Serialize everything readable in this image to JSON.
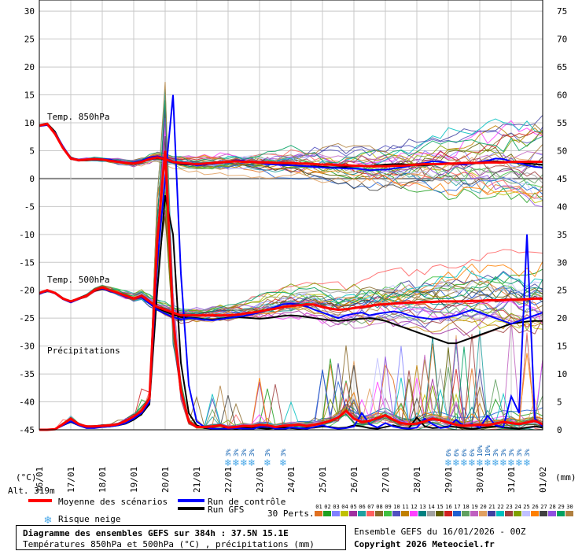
{
  "chart_data": {
    "type": "line",
    "title": "Diagramme des ensembles GEFS sur 384h : 37.5N 15.1E",
    "subtitle": "Températures 850hPa et 500hPa (°C) , précipitations (mm)",
    "ylabel": "(°C)",
    "ylabel_right": "(mm)",
    "ylim": [
      -45,
      32
    ],
    "ylim_right": [
      0,
      77
    ],
    "yticks_left": [
      "30",
      "25",
      "20",
      "15",
      "10",
      "5",
      "0",
      "-5",
      "-10",
      "-15",
      "-20",
      "-25",
      "-30",
      "-35",
      "-40",
      "-45"
    ],
    "yticks_right": [
      "75",
      "70",
      "65",
      "60",
      "55",
      "50",
      "45",
      "40",
      "35",
      "30",
      "25",
      "20",
      "15",
      "10",
      "5",
      "0"
    ],
    "x_labels": [
      "16/01",
      "17/01",
      "18/01",
      "19/01",
      "20/01",
      "21/01",
      "22/01",
      "23/01",
      "24/01",
      "25/01",
      "26/01",
      "27/01",
      "28/01",
      "29/01",
      "30/01",
      "31/01",
      "01/02"
    ],
    "panels": [
      "Temp. 850hPa",
      "Temp. 500hPa",
      "Précipitations"
    ],
    "x": [
      0,
      6,
      12,
      18,
      24,
      30,
      36,
      42,
      48,
      54,
      60,
      66,
      72,
      78,
      84,
      90,
      96,
      102,
      108,
      114,
      120,
      126,
      132,
      138,
      144,
      150,
      156,
      162,
      168,
      174,
      180,
      186,
      192,
      198,
      204,
      210,
      216,
      222,
      228,
      234,
      240,
      246,
      252,
      258,
      264,
      270,
      276,
      282,
      288,
      294,
      300,
      306,
      312,
      318,
      324,
      330,
      336,
      342,
      348,
      354,
      360,
      366,
      372,
      378,
      384
    ],
    "series": [
      {
        "name": "Moyenne des scénarios",
        "panel": "850",
        "values": [
          9.5,
          9.8,
          8.0,
          5.5,
          3.6,
          3.3,
          3.4,
          3.5,
          3.4,
          3.2,
          3.0,
          2.8,
          2.7,
          3.0,
          3.5,
          3.8,
          3.5,
          3.0,
          2.8,
          2.7,
          2.6,
          2.7,
          2.8,
          2.9,
          3.0,
          3.1,
          3.0,
          3.0,
          2.9,
          2.9,
          2.8,
          2.8,
          2.8,
          2.7,
          2.7,
          2.6,
          2.5,
          2.5,
          2.4,
          2.4,
          2.3,
          2.3,
          2.2,
          2.2,
          2.2,
          2.3,
          2.3,
          2.4,
          2.5,
          2.6,
          2.6,
          2.6,
          2.7,
          2.7,
          2.8,
          2.8,
          2.8,
          2.9,
          2.9,
          2.9,
          3.0,
          3.0,
          3.0,
          3.0,
          3.0
        ]
      },
      {
        "name": "Moyenne des scénarios",
        "panel": "500",
        "values": [
          -20.5,
          -20.0,
          -20.5,
          -21.5,
          -22.0,
          -21.5,
          -21.0,
          -20.0,
          -19.5,
          -20.0,
          -20.5,
          -21.0,
          -21.5,
          -21.0,
          -22.0,
          -23.0,
          -23.5,
          -24.0,
          -24.5,
          -24.5,
          -24.5,
          -24.5,
          -24.5,
          -24.5,
          -24.5,
          -24.4,
          -24.2,
          -24.0,
          -23.8,
          -23.5,
          -23.3,
          -23.0,
          -22.8,
          -22.7,
          -22.5,
          -22.6,
          -23.0,
          -23.3,
          -23.5,
          -23.4,
          -23.2,
          -23.0,
          -22.8,
          -22.6,
          -22.5,
          -22.4,
          -22.3,
          -22.2,
          -22.2,
          -22.1,
          -22.1,
          -22.0,
          -22.0,
          -22.0,
          -22.0,
          -21.9,
          -21.9,
          -21.8,
          -21.8,
          -21.8,
          -21.7,
          -21.7,
          -21.6,
          -21.5,
          -21.5
        ]
      },
      {
        "name": "Moyenne des scénarios",
        "panel": "precip",
        "values": [
          0,
          0,
          0.1,
          1.0,
          2.0,
          1.0,
          0.6,
          0.6,
          0.7,
          0.8,
          1.0,
          1.6,
          2.4,
          3.4,
          5.6,
          34,
          50,
          20,
          7,
          1.5,
          0.5,
          0.5,
          0.6,
          0.8,
          0.4,
          0.5,
          0.7,
          0.6,
          0.9,
          0.8,
          0.5,
          0.7,
          0.8,
          0.9,
          0.7,
          0.9,
          1.2,
          1.6,
          2.2,
          3.4,
          2.0,
          1.4,
          1.6,
          2.1,
          2.6,
          1.8,
          1.2,
          1.0,
          1.1,
          1.5,
          2.0,
          1.7,
          1.3,
          0.9,
          0.7,
          0.8,
          0.9,
          0.8,
          1.1,
          1.4,
          1.2,
          1.0,
          1.3,
          1.6,
          1.0
        ]
      },
      {
        "name": "Run de contrôle",
        "panel": "850",
        "values": [
          9.4,
          9.6,
          8.2,
          5.8,
          3.7,
          3.4,
          3.4,
          3.6,
          3.5,
          3.4,
          3.1,
          2.9,
          2.9,
          3.2,
          3.8,
          4.0,
          3.7,
          3.1,
          2.7,
          2.6,
          2.4,
          2.5,
          2.7,
          2.8,
          3.0,
          3.3,
          3.2,
          3.0,
          2.8,
          2.6,
          2.5,
          2.4,
          2.4,
          2.3,
          2.2,
          2.1,
          2.0,
          1.9,
          1.9,
          1.8,
          1.8,
          1.7,
          1.5,
          1.6,
          1.6,
          1.8,
          2.0,
          2.2,
          2.6,
          2.8,
          3.1,
          3.0,
          2.8,
          2.6,
          2.5,
          2.7,
          3.0,
          3.2,
          3.6,
          3.5,
          3.1,
          2.8,
          2.4,
          2.1,
          2.0
        ]
      },
      {
        "name": "Run de contrôle",
        "panel": "500",
        "values": [
          -20.7,
          -20.1,
          -20.6,
          -21.6,
          -22.2,
          -21.6,
          -21.0,
          -20.0,
          -19.7,
          -20.2,
          -20.6,
          -21.2,
          -21.5,
          -21.3,
          -22.4,
          -23.5,
          -24.2,
          -24.8,
          -25.2,
          -25.0,
          -25.1,
          -25.3,
          -25.4,
          -25.2,
          -25.0,
          -24.8,
          -24.6,
          -24.3,
          -24.0,
          -23.5,
          -23.0,
          -22.5,
          -22.4,
          -22.6,
          -22.9,
          -23.5,
          -24.0,
          -24.5,
          -25.0,
          -24.5,
          -24.2,
          -24.0,
          -24.5,
          -24.2,
          -24.0,
          -23.8,
          -24.0,
          -24.5,
          -24.8,
          -25.0,
          -25.2,
          -25.0,
          -24.8,
          -24.5,
          -24.0,
          -23.5,
          -24.0,
          -24.5,
          -25.0,
          -25.5,
          -26.0,
          -25.5,
          -25.0,
          -24.5,
          -24.0
        ]
      },
      {
        "name": "Run de contrôle",
        "panel": "precip",
        "values": [
          0,
          0,
          0.1,
          0.8,
          1.5,
          0.8,
          0.3,
          0.3,
          0.5,
          0.6,
          0.8,
          1.2,
          2.0,
          3.0,
          5.0,
          30,
          45,
          60,
          28,
          8,
          1.5,
          0.5,
          0.2,
          0.1,
          0.2,
          0.3,
          0.2,
          0.1,
          0.5,
          0.6,
          0.2,
          0.1,
          0.4,
          0.3,
          0.2,
          0.5,
          0.8,
          0.4,
          0.2,
          0.3,
          0.6,
          3.0,
          1.0,
          0.4,
          1.2,
          0.6,
          0.3,
          0.2,
          0.4,
          2.0,
          1.0,
          0.3,
          0.5,
          1.8,
          0.6,
          1.0,
          0.4,
          2.5,
          0.8,
          0.5,
          6.0,
          3.0,
          35,
          2.0,
          0.6
        ]
      },
      {
        "name": "Run GFS",
        "panel": "850",
        "values": [
          9.6,
          9.9,
          8.4,
          5.6,
          3.8,
          3.3,
          3.3,
          3.4,
          3.3,
          3.3,
          3.0,
          2.8,
          2.8,
          3.1,
          3.4,
          3.7,
          3.4,
          2.9,
          2.6,
          2.5,
          2.5,
          2.6,
          2.7,
          2.8,
          3.0,
          3.2,
          3.1,
          2.9,
          2.8,
          2.7,
          2.6,
          2.5,
          2.4,
          2.3,
          2.2,
          2.2,
          2.1,
          2.0,
          2.0,
          2.1,
          2.2,
          2.3,
          2.3,
          2.4,
          2.5,
          2.6,
          2.6,
          2.5,
          2.4,
          2.4,
          2.5,
          2.6,
          2.7,
          2.6,
          2.6,
          2.7,
          2.8,
          3.0,
          3.1,
          3.0,
          2.9,
          2.8,
          2.7,
          2.6,
          2.5
        ]
      },
      {
        "name": "Run GFS",
        "panel": "500",
        "values": [
          -20.6,
          -20.2,
          -20.4,
          -21.4,
          -22.1,
          -21.4,
          -20.9,
          -20.1,
          -19.8,
          -20.1,
          -20.5,
          -21.1,
          -21.4,
          -21.2,
          -22.2,
          -23.2,
          -23.8,
          -24.4,
          -24.8,
          -24.9,
          -25.0,
          -25.2,
          -25.3,
          -25.1,
          -24.9,
          -24.8,
          -24.9,
          -25.0,
          -25.1,
          -25.0,
          -24.8,
          -24.6,
          -24.5,
          -24.6,
          -24.8,
          -25.0,
          -25.2,
          -25.4,
          -25.5,
          -25.4,
          -25.2,
          -25.1,
          -25.0,
          -25.2,
          -25.5,
          -26.0,
          -26.5,
          -27.0,
          -27.5,
          -28.0,
          -28.5,
          -29.0,
          -29.5,
          -29.5,
          -29.0,
          -28.5,
          -28.0,
          -27.5,
          -27.0,
          -26.5,
          -26.0,
          -25.8,
          -25.6,
          -25.5,
          -25.5
        ]
      },
      {
        "name": "Run GFS",
        "panel": "precip",
        "values": [
          0,
          0,
          0.1,
          0.8,
          1.4,
          0.8,
          0.4,
          0.4,
          0.5,
          0.6,
          0.8,
          1.1,
          1.8,
          2.8,
          4.6,
          25,
          42,
          35,
          12,
          3,
          0.8,
          0.3,
          0.2,
          0.2,
          0.3,
          0.2,
          0.3,
          0.4,
          0.3,
          0.2,
          0.3,
          0.4,
          0.3,
          0.2,
          0.3,
          0.4,
          0.6,
          0.5,
          0.3,
          0.4,
          0.8,
          0.6,
          0.3,
          0.2,
          0.5,
          0.8,
          0.4,
          0.3,
          2.2,
          0.6,
          0.3,
          0.4,
          0.6,
          0.5,
          0.3,
          0.2,
          0.3,
          0.5,
          0.6,
          0.4,
          0.3,
          0.2,
          0.4,
          0.6,
          0.4
        ]
      }
    ],
    "perturbations_count": 30,
    "perturbation_labels": [
      "01",
      "02",
      "03",
      "04",
      "05",
      "06",
      "07",
      "08",
      "09",
      "10",
      "11",
      "12",
      "13",
      "14",
      "15",
      "16",
      "17",
      "18",
      "19",
      "20",
      "21",
      "22",
      "23",
      "24",
      "25",
      "26",
      "27",
      "28",
      "29",
      "30"
    ],
    "perturbation_colors": [
      "#e07020",
      "#20a020",
      "#8080ff",
      "#c0c000",
      "#a030a0",
      "#20a0a0",
      "#ff6060",
      "#8a6a2a",
      "#40c040",
      "#5050c0",
      "#c08000",
      "#ff40ff",
      "#008080",
      "#a0a0a0",
      "#606000",
      "#d02020",
      "#2060d0",
      "#60a060",
      "#c060c0",
      "#e0a060",
      "#4040a0",
      "#00c0c0",
      "#a04040",
      "#80a000",
      "#c0c0ff",
      "#ff8000",
      "#404040",
      "#9050e0",
      "#00a060",
      "#b08040"
    ],
    "snow_risk_annotations": [
      {
        "x": 144,
        "pct": "3%"
      },
      {
        "x": 150,
        "pct": "3%"
      },
      {
        "x": 156,
        "pct": "3%"
      },
      {
        "x": 162,
        "pct": "3%"
      },
      {
        "x": 174,
        "pct": "3%"
      },
      {
        "x": 186,
        "pct": "3%"
      },
      {
        "x": 312,
        "pct": "6%"
      },
      {
        "x": 318,
        "pct": "6%"
      },
      {
        "x": 324,
        "pct": "6%"
      },
      {
        "x": 330,
        "pct": "6%"
      },
      {
        "x": 336,
        "pct": "10%"
      },
      {
        "x": 342,
        "pct": "10%"
      },
      {
        "x": 348,
        "pct": "3%"
      },
      {
        "x": 354,
        "pct": "3%"
      },
      {
        "x": 360,
        "pct": "3%"
      },
      {
        "x": 366,
        "pct": "3%"
      },
      {
        "x": 372,
        "pct": "3%"
      }
    ]
  },
  "legend": {
    "mean_label": "Moyenne des scénarios",
    "control_label": "Run de contrôle",
    "gfs_label": "Run GFS",
    "snow_label": "Risque neige",
    "perts_label": "30 Perts.",
    "mean_color": "#ff0000",
    "control_color": "#0000ff",
    "gfs_color": "#000000"
  },
  "footer": {
    "title": "Diagramme des ensembles GEFS sur 384h : 37.5N 15.1E",
    "subtitle": "Températures 850hPa et 500hPa (°C) , précipitations (mm)",
    "run_info": "Ensemble GEFS du 16/01/2026 - 00Z",
    "copyright": "Copyright 2026 Meteociel.fr"
  },
  "altitude": "Alt. 319m"
}
